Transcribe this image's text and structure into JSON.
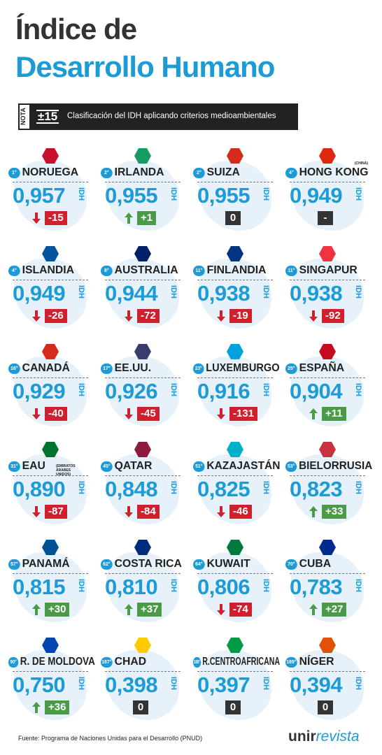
{
  "header": {
    "title_line1": "Índice de",
    "title_line2": "Desarrollo Humano"
  },
  "note": {
    "label": "NOTA",
    "symbol": "±15",
    "text": "Clasificación del IDH aplicando criterios medioambientales"
  },
  "unit": "IDH",
  "cards": [
    {
      "rank": "1°",
      "name": "NORUEGA",
      "value": "0,957",
      "change": "-15",
      "direction": "down"
    },
    {
      "rank": "2°",
      "name": "IRLANDA",
      "value": "0,955",
      "change": "+1",
      "direction": "up"
    },
    {
      "rank": "2°",
      "name": "SUIZA",
      "value": "0,955",
      "change": "0",
      "direction": "none"
    },
    {
      "rank": "4°",
      "name": "HONG KONG",
      "note": "(CHINA)",
      "value": "0,949",
      "change": "-",
      "direction": "none"
    },
    {
      "rank": "4°",
      "name": "ISLANDIA",
      "value": "0,949",
      "change": "-26",
      "direction": "down"
    },
    {
      "rank": "8°",
      "name": "AUSTRALIA",
      "value": "0,944",
      "change": "-72",
      "direction": "down"
    },
    {
      "rank": "11°",
      "name": "FINLANDIA",
      "value": "0,938",
      "change": "-19",
      "direction": "down"
    },
    {
      "rank": "11°",
      "name": "SINGAPUR",
      "value": "0,938",
      "change": "-92",
      "direction": "down"
    },
    {
      "rank": "16°",
      "name": "CANADÁ",
      "value": "0,929",
      "change": "-40",
      "direction": "down"
    },
    {
      "rank": "17°",
      "name": "EE.UU.",
      "value": "0,926",
      "change": "-45",
      "direction": "down"
    },
    {
      "rank": "23°",
      "name": "LUXEMBURGO",
      "value": "0,916",
      "change": "-131",
      "direction": "down"
    },
    {
      "rank": "25°",
      "name": "ESPAÑA",
      "value": "0,904",
      "change": "+11",
      "direction": "up"
    },
    {
      "rank": "31°",
      "name": "EAU",
      "note": "(EMIRATOS ÁRABES UNIDOS)",
      "value": "0,890",
      "change": "-87",
      "direction": "down"
    },
    {
      "rank": "45°",
      "name": "QATAR",
      "value": "0,848",
      "change": "-84",
      "direction": "down"
    },
    {
      "rank": "51°",
      "name": "KAZAJASTÁN",
      "value": "0,825",
      "change": "-46",
      "direction": "down"
    },
    {
      "rank": "53°",
      "name": "BIELORRUSIA",
      "value": "0,823",
      "change": "+33",
      "direction": "up"
    },
    {
      "rank": "57°",
      "name": "PANAMÁ",
      "value": "0,815",
      "change": "+30",
      "direction": "up"
    },
    {
      "rank": "62°",
      "name": "COSTA RICA",
      "value": "0,810",
      "change": "+37",
      "direction": "up"
    },
    {
      "rank": "64°",
      "name": "KUWAIT",
      "value": "0,806",
      "change": "-74",
      "direction": "down"
    },
    {
      "rank": "70°",
      "name": "CUBA",
      "value": "0,783",
      "change": "+27",
      "direction": "up"
    },
    {
      "rank": "90°",
      "name": "R. DE MOLDOVA",
      "value": "0,750",
      "change": "+36",
      "direction": "up"
    },
    {
      "rank": "187°",
      "name": "CHAD",
      "value": "0,398",
      "change": "0",
      "direction": "none"
    },
    {
      "rank": "188°",
      "name": "R.CENTROAFRICANA",
      "value": "0,397",
      "change": "0",
      "direction": "none"
    },
    {
      "rank": "189°",
      "name": "NÍGER",
      "value": "0,394",
      "change": "0",
      "direction": "none"
    }
  ],
  "footer": {
    "source": "Fuente: Programa de Naciones Unidas para el Desarrollo (PNUD)",
    "brand_a": "unir",
    "brand_b": "revista"
  }
}
